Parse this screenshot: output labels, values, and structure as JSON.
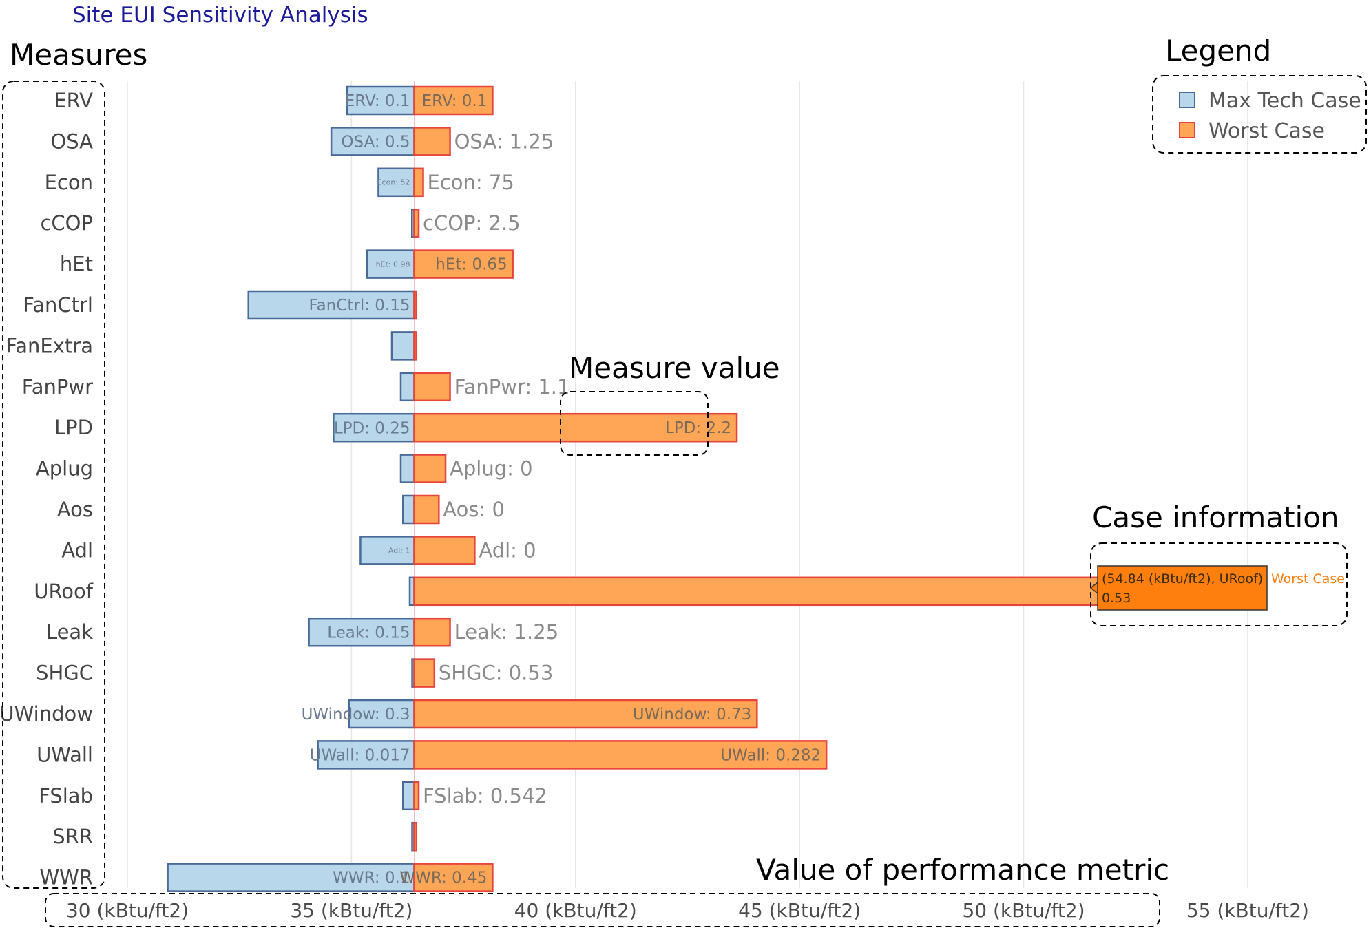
{
  "chart_data": {
    "type": "bar",
    "orientation": "horizontal",
    "title": "Site EUI Sensitivity Analysis",
    "baseline": 36.4,
    "xlim": [
      29.6,
      56.2
    ],
    "x_ticks": [
      30,
      35,
      40,
      45,
      50,
      55
    ],
    "x_tick_labels": [
      "30 (kBtu/ft2)",
      "35 (kBtu/ft2)",
      "40 (kBtu/ft2)",
      "45 (kBtu/ft2)",
      "50 (kBtu/ft2)",
      "55 (kBtu/ft2)"
    ],
    "grid": true,
    "legend_position": "top-right",
    "series": [
      {
        "name": "Max Tech Case",
        "color": "#b9d7ea",
        "edge": "#4a6a9a"
      },
      {
        "name": "Worst Case",
        "color": "#ffa556",
        "edge": "#e8443c"
      }
    ],
    "measures": [
      {
        "name": "ERV",
        "max_tech": 34.9,
        "max_label": "ERV: 0.1",
        "worst": 38.15,
        "worst_label": "ERV: 0.1"
      },
      {
        "name": "OSA",
        "max_tech": 34.55,
        "max_label": "OSA: 0.5",
        "worst": 37.2,
        "worst_label": "OSA: 1.25"
      },
      {
        "name": "Econ",
        "max_tech": 35.6,
        "max_label": "Econ: 52",
        "worst": 36.6,
        "worst_label": "Econ: 75"
      },
      {
        "name": "cCOP",
        "max_tech": 36.35,
        "max_label": "",
        "worst": 36.5,
        "worst_label": "cCOP: 2.5"
      },
      {
        "name": "hEt",
        "max_tech": 35.35,
        "max_label": "hEt: 0.98",
        "worst": 38.6,
        "worst_label": "hEt: 0.65"
      },
      {
        "name": "FanCtrl",
        "max_tech": 32.7,
        "max_label": "FanCtrl: 0.15",
        "worst": 36.4,
        "worst_label": ""
      },
      {
        "name": "FanExtra",
        "max_tech": 35.9,
        "max_label": "",
        "worst": 36.4,
        "worst_label": ""
      },
      {
        "name": "FanPwr",
        "max_tech": 36.1,
        "max_label": "",
        "worst": 37.2,
        "worst_label": "FanPwr: 1.1"
      },
      {
        "name": "LPD",
        "max_tech": 34.6,
        "max_label": "LPD: 0.25",
        "worst": 43.6,
        "worst_label": "LPD: 2.2"
      },
      {
        "name": "Aplug",
        "max_tech": 36.1,
        "max_label": "",
        "worst": 37.1,
        "worst_label": "Aplug: 0"
      },
      {
        "name": "Aos",
        "max_tech": 36.15,
        "max_label": "",
        "worst": 36.95,
        "worst_label": "Aos: 0"
      },
      {
        "name": "Adl",
        "max_tech": 35.2,
        "max_label": "Adl: 1",
        "worst": 37.75,
        "worst_label": "Adl: 0"
      },
      {
        "name": "URoof",
        "max_tech": 36.3,
        "max_label": "",
        "worst": 54.84,
        "worst_label": "URoof: 0.53"
      },
      {
        "name": "Leak",
        "max_tech": 34.05,
        "max_label": "Leak: 0.15",
        "worst": 37.2,
        "worst_label": "Leak: 1.25"
      },
      {
        "name": "SHGC",
        "max_tech": 36.4,
        "max_label": "",
        "worst": 36.85,
        "worst_label": "SHGC: 0.53"
      },
      {
        "name": "UWindow",
        "max_tech": 34.95,
        "max_label": "UWindow: 0.3",
        "worst": 44.05,
        "worst_label": "UWindow: 0.73"
      },
      {
        "name": "UWall",
        "max_tech": 34.25,
        "max_label": "UWall: 0.017",
        "worst": 45.6,
        "worst_label": "UWall: 0.282"
      },
      {
        "name": "FSlab",
        "max_tech": 36.15,
        "max_label": "",
        "worst": 36.5,
        "worst_label": "FSlab: 0.542"
      },
      {
        "name": "SRR",
        "max_tech": 36.4,
        "max_label": "",
        "worst": 36.45,
        "worst_label": ""
      },
      {
        "name": "WWR",
        "max_tech": 30.9,
        "max_label": "WWR: 0.1",
        "worst": 38.15,
        "worst_label": "WWR: 0.45"
      }
    ],
    "tooltip": {
      "line1": "(54.84 (kBtu/ft2), URoof)",
      "line2": "0.53",
      "series": "Worst Case"
    },
    "annotations": {
      "measures": "Measures",
      "legend": "Legend",
      "measure_value": "Measure value",
      "case_information": "Case information",
      "value_of_performance_metric": "Value of performance metric"
    }
  }
}
